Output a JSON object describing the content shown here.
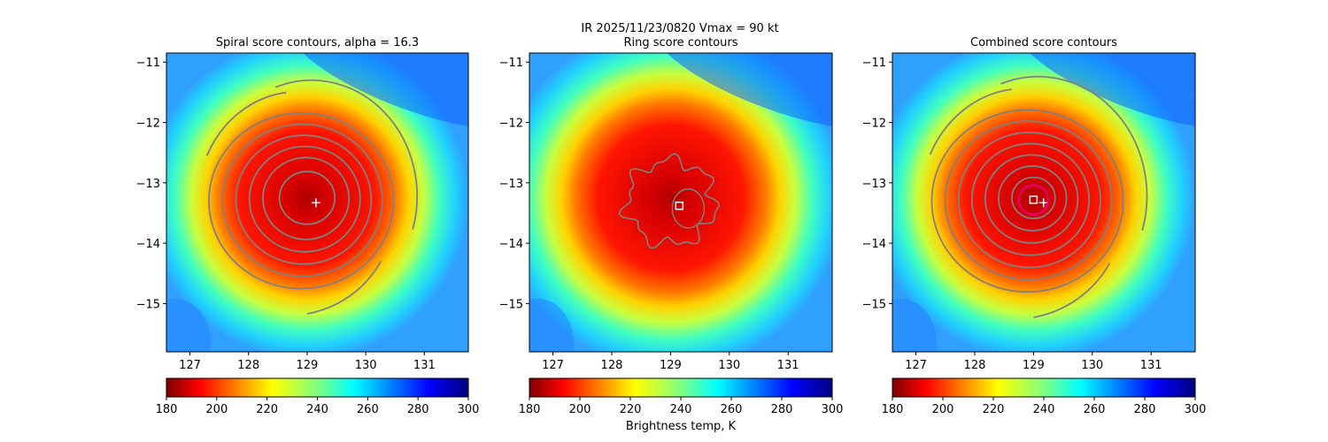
{
  "figure": {
    "suptitle_line1": "IR  2025/11/23/0820    Vmax = 90 kt"
  },
  "chart_data": [
    {
      "type": "heatmap",
      "title": "Spiral score contours, alpha = 16.3",
      "xlim": [
        126.6,
        131.75
      ],
      "ylim": [
        -15.8,
        -10.85
      ],
      "x_ticks": [
        "127",
        "128",
        "129",
        "130",
        "131"
      ],
      "y_ticks": [
        "−11",
        "−12",
        "−13",
        "−14",
        "−15"
      ],
      "center": [
        129.0,
        -13.25
      ],
      "cloud_radius_deg": 1.45,
      "contour_radii_deg": [
        0.45,
        0.7,
        0.9,
        1.1,
        1.3,
        1.5
      ],
      "markers": [
        {
          "symbol": "plus",
          "x": 129.15,
          "y": -13.33,
          "color": "#ffffff"
        }
      ],
      "colorbar": {
        "min": 180,
        "max": 300,
        "ticks": [
          "180",
          "200",
          "220",
          "240",
          "260",
          "280",
          "300"
        ],
        "cmap": "jet_r",
        "label": ""
      }
    },
    {
      "type": "heatmap",
      "title": "Ring score contours",
      "xlim": [
        126.6,
        131.75
      ],
      "ylim": [
        -15.8,
        -10.85
      ],
      "x_ticks": [
        "127",
        "128",
        "129",
        "130",
        "131"
      ],
      "y_ticks": [
        "−11",
        "−12",
        "−13",
        "−14",
        "−15"
      ],
      "center": [
        129.0,
        -13.25
      ],
      "cloud_radius_deg": 1.55,
      "ring_contour_radius_deg": 0.75,
      "markers": [
        {
          "symbol": "square",
          "x": 129.15,
          "y": -13.38,
          "color": "#ffffff"
        }
      ],
      "colorbar": {
        "min": 180,
        "max": 300,
        "ticks": [
          "180",
          "200",
          "220",
          "240",
          "260",
          "280",
          "300"
        ],
        "cmap": "jet_r",
        "label": "Brightness temp, K"
      }
    },
    {
      "type": "heatmap",
      "title": "Combined score contours",
      "xlim": [
        126.6,
        131.75
      ],
      "ylim": [
        -15.8,
        -10.85
      ],
      "x_ticks": [
        "127",
        "128",
        "129",
        "130",
        "131"
      ],
      "y_ticks": [
        "−11",
        "−12",
        "−13",
        "−14",
        "−15"
      ],
      "center": [
        129.0,
        -13.25
      ],
      "cloud_radius_deg": 1.45,
      "contour_radii_deg": [
        0.35,
        0.55,
        0.75,
        0.95,
        1.15,
        1.35,
        1.55
      ],
      "markers": [
        {
          "symbol": "square",
          "x": 129.0,
          "y": -13.28,
          "color": "#ffffff"
        },
        {
          "symbol": "plus",
          "x": 129.17,
          "y": -13.33,
          "color": "#ffffff"
        },
        {
          "symbol": "circle",
          "x": 129.0,
          "y": -13.28,
          "r_deg": 0.25,
          "color": "#e6007e"
        }
      ],
      "colorbar": {
        "min": 180,
        "max": 300,
        "ticks": [
          "180",
          "200",
          "220",
          "240",
          "260",
          "280",
          "300"
        ],
        "cmap": "jet_r",
        "label": ""
      }
    }
  ]
}
